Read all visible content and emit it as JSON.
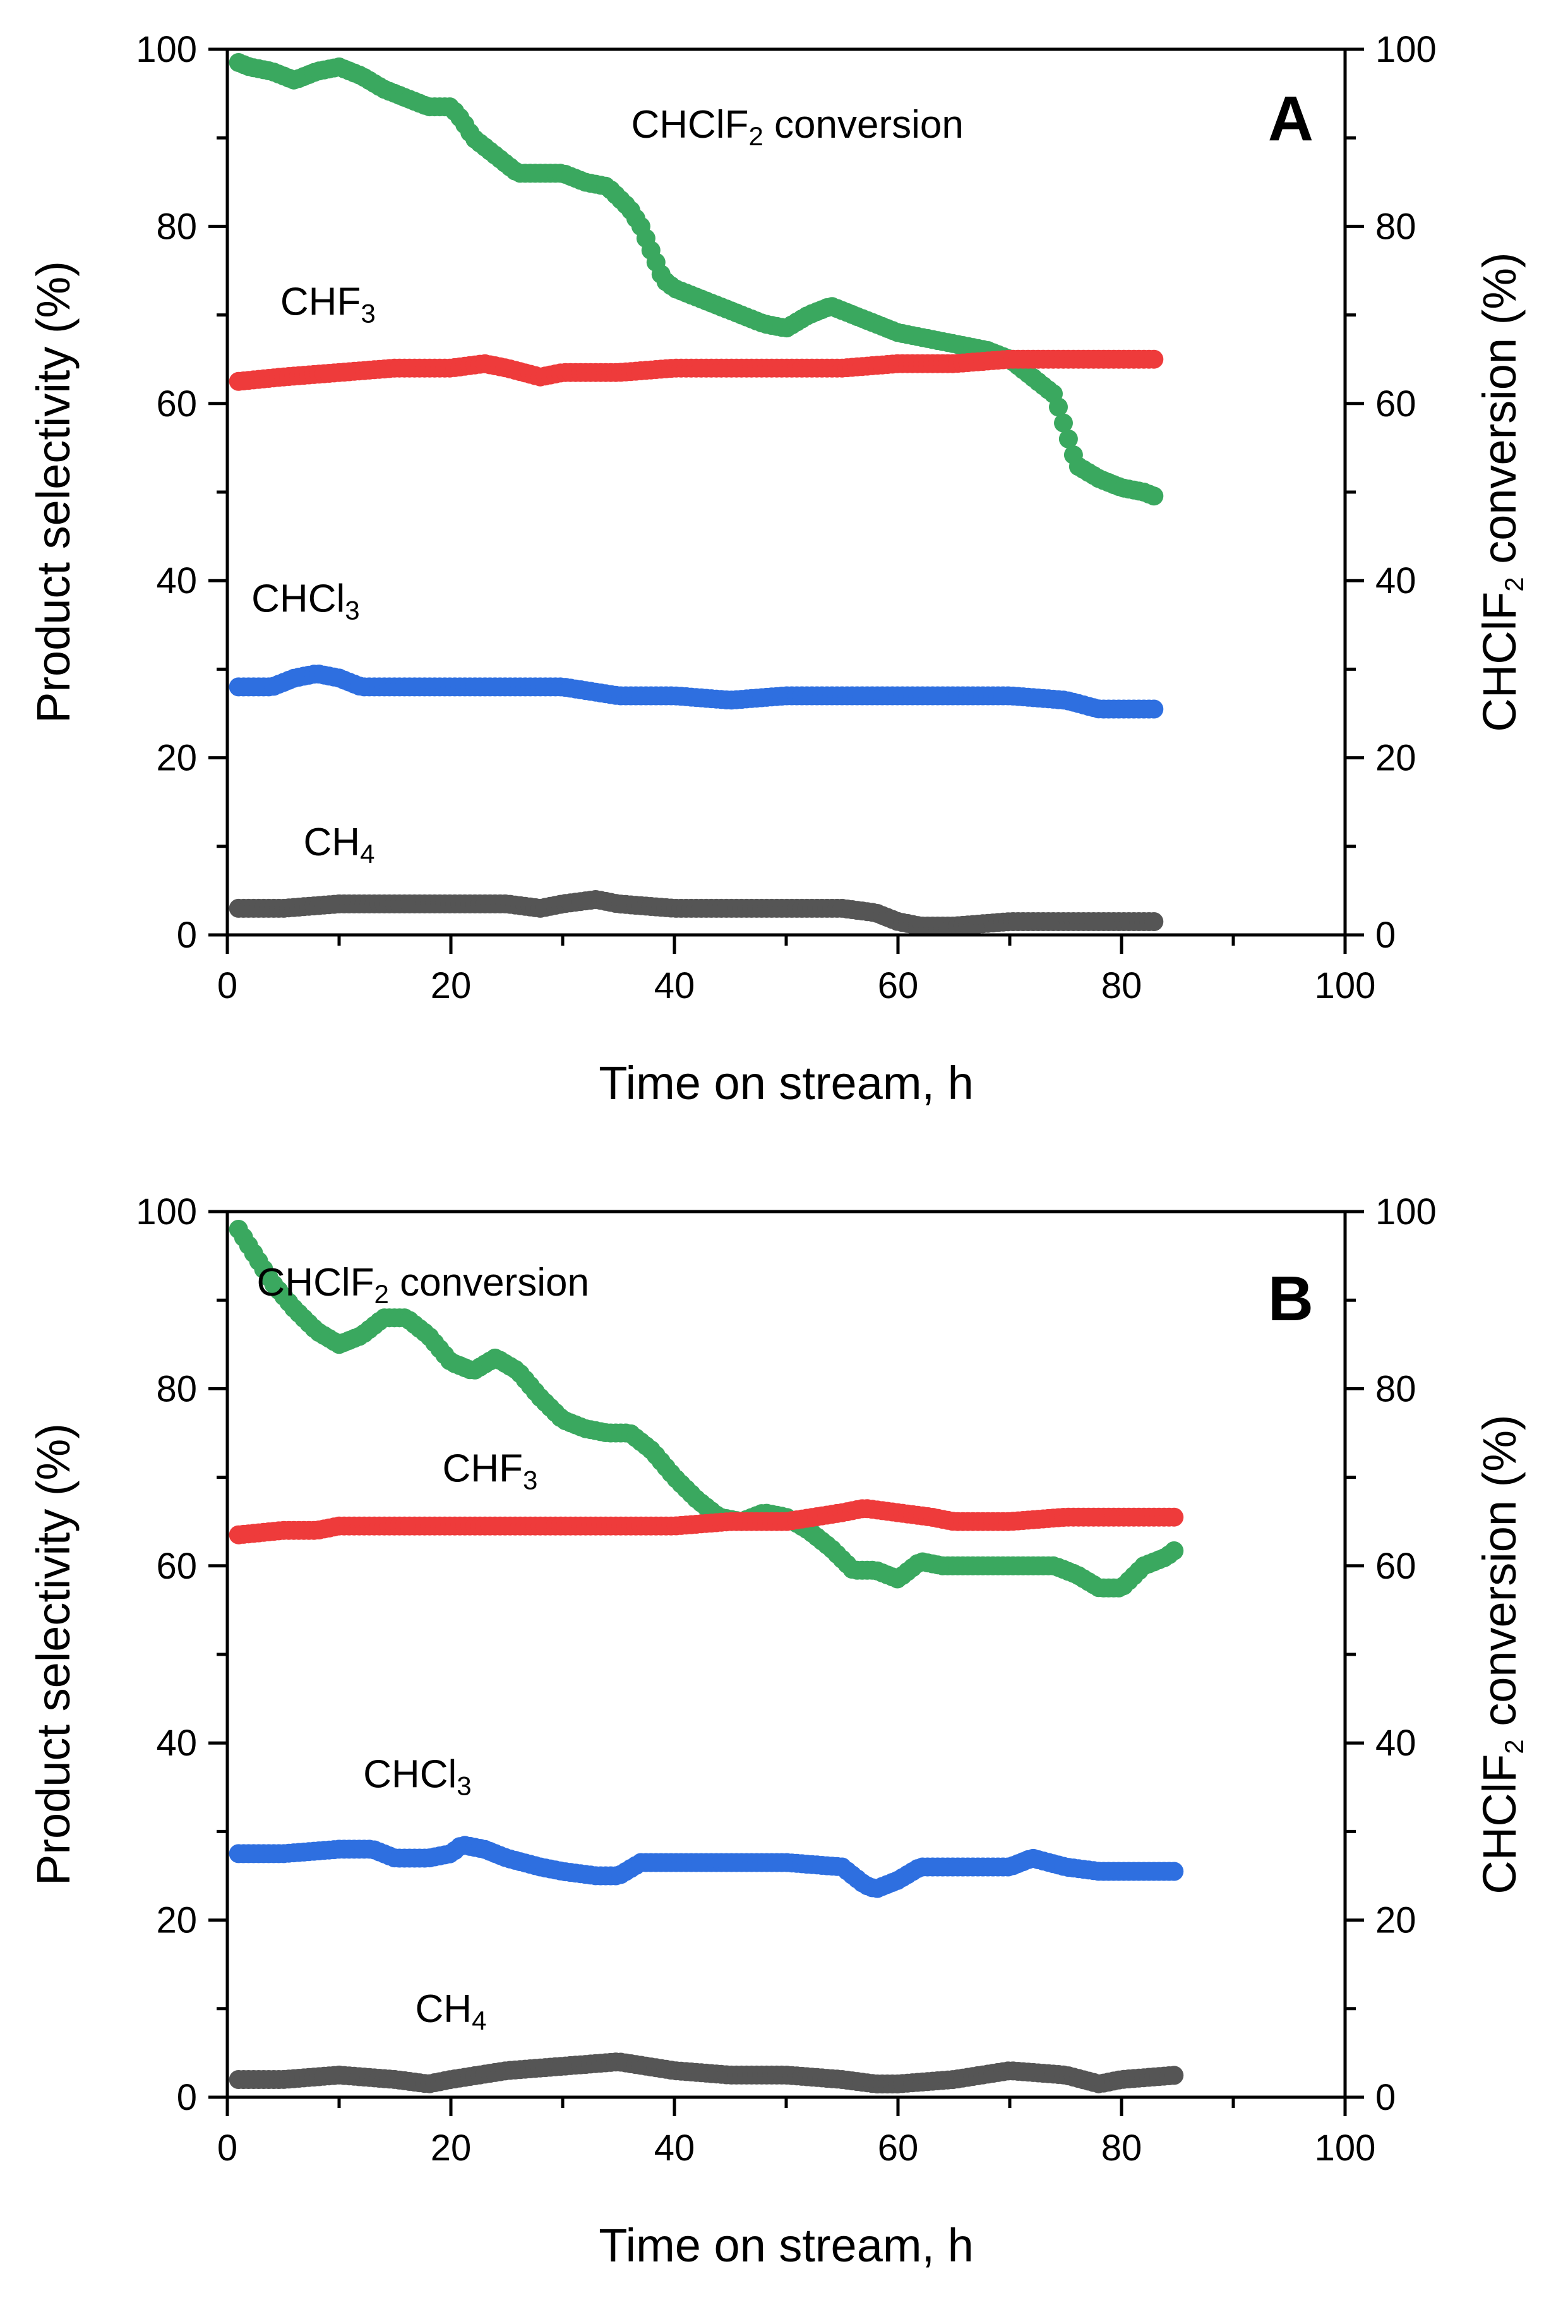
{
  "chart_data": [
    {
      "type": "scatter",
      "panel_label": "A",
      "xlabel": "Time on stream, h",
      "ylabel_left": "Product selectivity (%)",
      "ylabel_right": {
        "main": "CHClF",
        "sub": "2",
        "tail": " conversion (%)"
      },
      "xlim": [
        0,
        100
      ],
      "ylim": [
        0,
        100
      ],
      "xticks": [
        "0",
        "20",
        "40",
        "60",
        "80",
        "100"
      ],
      "yticks": [
        "0",
        "20",
        "40",
        "60",
        "80",
        "100"
      ],
      "legend": "none",
      "series": [
        {
          "name": "CHClF2 conversion",
          "label": {
            "main": "CHClF",
            "sub": "2",
            "tail": " conversion"
          },
          "color": "#3aa85f",
          "axis": "right",
          "x": [
            1,
            2,
            4,
            6,
            8,
            10,
            12,
            14,
            16,
            18,
            20,
            21,
            22,
            24,
            26,
            28,
            30,
            32,
            34,
            36,
            37,
            38,
            39,
            40,
            42,
            44,
            46,
            48,
            50,
            52,
            54,
            56,
            58,
            60,
            62,
            64,
            66,
            68,
            70,
            72,
            74,
            75,
            76,
            78,
            80,
            82,
            83
          ],
          "y": [
            98.5,
            98,
            97.5,
            96.5,
            97.5,
            98,
            97,
            95.5,
            94.5,
            93.5,
            93.5,
            92,
            90,
            88,
            86,
            86,
            86,
            85,
            84.5,
            82,
            80,
            77,
            74,
            73,
            72,
            71,
            70,
            69,
            68.5,
            70,
            71,
            70,
            69,
            68,
            67.5,
            67,
            66.5,
            66,
            65,
            63,
            61,
            57,
            53,
            51.5,
            50.5,
            50,
            49.5
          ]
        },
        {
          "name": "CHF3",
          "label": {
            "main": "CHF",
            "sub": "3",
            "tail": ""
          },
          "color": "#ee3b3b",
          "axis": "left",
          "x": [
            1,
            5,
            10,
            15,
            20,
            23,
            25,
            28,
            30,
            35,
            40,
            45,
            50,
            55,
            60,
            65,
            70,
            75,
            80,
            83
          ],
          "y": [
            62.5,
            63,
            63.5,
            64,
            64,
            64.5,
            64,
            63,
            63.5,
            63.5,
            64,
            64,
            64,
            64,
            64.5,
            64.5,
            65,
            65,
            65,
            65
          ]
        },
        {
          "name": "CHCl3",
          "label": {
            "main": "CHCl",
            "sub": "3",
            "tail": ""
          },
          "color": "#2e6fe0",
          "axis": "left",
          "x": [
            1,
            4,
            6,
            8,
            10,
            12,
            15,
            20,
            25,
            30,
            35,
            40,
            45,
            50,
            55,
            60,
            65,
            70,
            75,
            78,
            80,
            83
          ],
          "y": [
            28,
            28,
            29,
            29.5,
            29,
            28,
            28,
            28,
            28,
            28,
            27,
            27,
            26.5,
            27,
            27,
            27,
            27,
            27,
            26.5,
            25.5,
            25.5,
            25.5
          ]
        },
        {
          "name": "CH4",
          "label": {
            "main": "CH",
            "sub": "4",
            "tail": ""
          },
          "color": "#555555",
          "axis": "left",
          "x": [
            1,
            5,
            10,
            15,
            20,
            25,
            28,
            30,
            33,
            35,
            40,
            45,
            50,
            55,
            58,
            60,
            62,
            65,
            70,
            75,
            80,
            83
          ],
          "y": [
            3,
            3,
            3.5,
            3.5,
            3.5,
            3.5,
            3,
            3.5,
            4,
            3.5,
            3,
            3,
            3,
            3,
            2.5,
            1.5,
            1,
            1,
            1.5,
            1.5,
            1.5,
            1.5
          ]
        }
      ],
      "annotations": [
        {
          "series": "CHClF2 conversion",
          "x": 51,
          "y": 90
        },
        {
          "series": "CHF3",
          "x": 9,
          "y": 70
        },
        {
          "series": "CHCl3",
          "x": 7,
          "y": 36.5
        },
        {
          "series": "CH4",
          "x": 10,
          "y": 9
        }
      ]
    },
    {
      "type": "scatter",
      "panel_label": "B",
      "xlabel": "Time on stream, h",
      "ylabel_left": "Product selectivity (%)",
      "ylabel_right": {
        "main": "CHClF",
        "sub": "2",
        "tail": " conversion (%)"
      },
      "xlim": [
        0,
        100
      ],
      "ylim": [
        0,
        100
      ],
      "xticks": [
        "0",
        "20",
        "40",
        "60",
        "80",
        "100"
      ],
      "yticks": [
        "0",
        "20",
        "40",
        "60",
        "80",
        "100"
      ],
      "legend": "none",
      "series": [
        {
          "name": "CHClF2 conversion",
          "label": {
            "main": "CHClF",
            "sub": "2",
            "tail": " conversion"
          },
          "color": "#3aa85f",
          "axis": "right",
          "x": [
            1,
            2,
            3,
            4,
            6,
            8,
            10,
            12,
            14,
            16,
            18,
            20,
            22,
            24,
            26,
            28,
            30,
            32,
            34,
            36,
            38,
            40,
            42,
            44,
            46,
            48,
            50,
            52,
            54,
            56,
            58,
            60,
            62,
            64,
            66,
            68,
            70,
            72,
            74,
            76,
            78,
            80,
            82,
            84,
            85
          ],
          "y": [
            98,
            96,
            94,
            92,
            89,
            86.5,
            85,
            86,
            88,
            88,
            86,
            83,
            82,
            83.5,
            82,
            79,
            76.5,
            75.5,
            75,
            75,
            73,
            70,
            67.5,
            65.5,
            65,
            66,
            65.5,
            64,
            62,
            59.5,
            59.5,
            58.5,
            60.5,
            60,
            60,
            60,
            60,
            60,
            60,
            59,
            57.5,
            57.5,
            60,
            61,
            62
          ]
        },
        {
          "name": "CHF3",
          "label": {
            "main": "CHF",
            "sub": "3",
            "tail": ""
          },
          "color": "#ee3b3b",
          "axis": "left",
          "x": [
            1,
            5,
            8,
            10,
            15,
            20,
            25,
            30,
            35,
            40,
            45,
            50,
            55,
            57,
            60,
            63,
            65,
            70,
            75,
            80,
            85
          ],
          "y": [
            63.5,
            64,
            64,
            64.5,
            64.5,
            64.5,
            64.5,
            64.5,
            64.5,
            64.5,
            65,
            65,
            66,
            66.5,
            66,
            65.5,
            65,
            65,
            65.5,
            65.5,
            65.5
          ]
        },
        {
          "name": "CHCl3",
          "label": {
            "main": "CHCl",
            "sub": "3",
            "tail": ""
          },
          "color": "#2e6fe0",
          "axis": "left",
          "x": [
            1,
            5,
            10,
            13,
            15,
            18,
            20,
            21,
            23,
            25,
            28,
            30,
            33,
            35,
            37,
            40,
            45,
            50,
            55,
            57,
            58,
            60,
            62,
            65,
            70,
            72,
            75,
            78,
            80,
            85
          ],
          "y": [
            27.5,
            27.5,
            28,
            28,
            27,
            27,
            27.5,
            28.5,
            28,
            27,
            26,
            25.5,
            25,
            25,
            26.5,
            26.5,
            26.5,
            26.5,
            26,
            24,
            23.5,
            24.5,
            26,
            26,
            26,
            27,
            26,
            25.5,
            25.5,
            25.5
          ]
        },
        {
          "name": "CH4",
          "label": {
            "main": "CH",
            "sub": "4",
            "tail": ""
          },
          "color": "#555555",
          "axis": "left",
          "x": [
            1,
            5,
            10,
            15,
            18,
            20,
            25,
            30,
            35,
            40,
            45,
            50,
            55,
            58,
            60,
            65,
            70,
            75,
            78,
            80,
            85
          ],
          "y": [
            2,
            2,
            2.5,
            2,
            1.5,
            2,
            3,
            3.5,
            4,
            3,
            2.5,
            2.5,
            2,
            1.5,
            1.5,
            2,
            3,
            2.5,
            1.5,
            2,
            2.5
          ]
        }
      ],
      "annotations": [
        {
          "series": "CHClF2 conversion",
          "x": 17.5,
          "y": 90.5
        },
        {
          "series": "CHF3",
          "x": 23.5,
          "y": 69.5
        },
        {
          "series": "CHCl3",
          "x": 17,
          "y": 35
        },
        {
          "series": "CH4",
          "x": 20,
          "y": 8.5
        }
      ]
    }
  ]
}
